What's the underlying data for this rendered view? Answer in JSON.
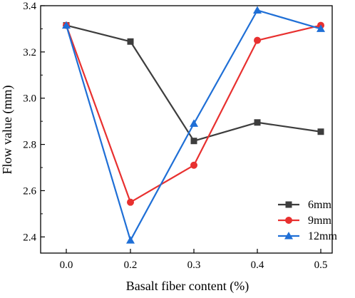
{
  "chart_data": {
    "type": "line",
    "title": "",
    "xlabel": "Basalt fiber content (%)",
    "ylabel": "Flow value (mm)",
    "x": [
      0.0,
      0.2,
      0.3,
      0.4,
      0.5
    ],
    "x_tick_labels": [
      "0.0",
      "0.2",
      "0.3",
      "0.4",
      "0.5"
    ],
    "y_tick_values": [
      2.4,
      2.6,
      2.8,
      3.0,
      3.2,
      3.4
    ],
    "y_tick_labels": [
      "2.4",
      "2.6",
      "2.8",
      "3.0",
      "3.2",
      "3.4"
    ],
    "ylim": [
      2.33,
      3.4
    ],
    "grid": false,
    "legend_position": "bottom-right",
    "series": [
      {
        "name": "6mm",
        "color": "#3d3d3d",
        "marker": "square",
        "values": [
          3.315,
          3.245,
          2.815,
          2.895,
          2.855
        ]
      },
      {
        "name": "9mm",
        "color": "#e8302f",
        "marker": "circle",
        "values": [
          3.315,
          2.55,
          2.71,
          3.25,
          3.315
        ]
      },
      {
        "name": "12mm",
        "color": "#1f6fd6",
        "marker": "triangle",
        "values": [
          3.315,
          2.385,
          2.89,
          3.38,
          3.3
        ]
      }
    ]
  }
}
